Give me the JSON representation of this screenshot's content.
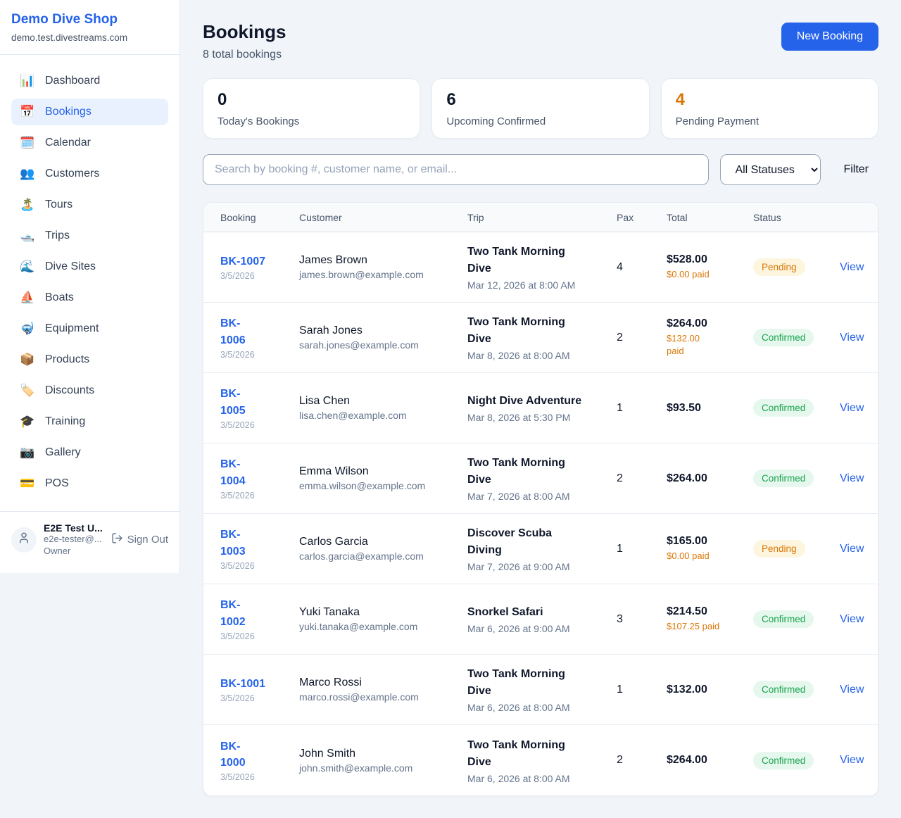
{
  "sidebar": {
    "shop_name": "Demo Dive Shop",
    "shop_domain": "demo.test.divestreams.com",
    "items": [
      {
        "label": "Dashboard",
        "icon": "bar-chart-icon",
        "glyph": "📊",
        "active": false
      },
      {
        "label": "Bookings",
        "icon": "calendar-icon",
        "glyph": "📅",
        "active": true
      },
      {
        "label": "Calendar",
        "icon": "spiral-calendar-icon",
        "glyph": "🗓️",
        "active": false
      },
      {
        "label": "Customers",
        "icon": "people-icon",
        "glyph": "👥",
        "active": false
      },
      {
        "label": "Tours",
        "icon": "island-icon",
        "glyph": "🏝️",
        "active": false
      },
      {
        "label": "Trips",
        "icon": "motorboat-icon",
        "glyph": "🛥️",
        "active": false
      },
      {
        "label": "Dive Sites",
        "icon": "wave-icon",
        "glyph": "🌊",
        "active": false
      },
      {
        "label": "Boats",
        "icon": "sailboat-icon",
        "glyph": "⛵",
        "active": false
      },
      {
        "label": "Equipment",
        "icon": "diving-mask-icon",
        "glyph": "🤿",
        "active": false
      },
      {
        "label": "Products",
        "icon": "package-icon",
        "glyph": "📦",
        "active": false
      },
      {
        "label": "Discounts",
        "icon": "tag-icon",
        "glyph": "🏷️",
        "active": false
      },
      {
        "label": "Training",
        "icon": "graduation-cap-icon",
        "glyph": "🎓",
        "active": false
      },
      {
        "label": "Gallery",
        "icon": "camera-icon",
        "glyph": "📷",
        "active": false
      },
      {
        "label": "POS",
        "icon": "credit-card-icon",
        "glyph": "💳",
        "active": false
      }
    ],
    "user": {
      "name": "E2E Test U...",
      "email": "e2e-tester@...",
      "role": "Owner",
      "sign_out_label": "Sign Out"
    }
  },
  "header": {
    "title": "Bookings",
    "subtitle": "8 total bookings",
    "new_booking_label": "New Booking"
  },
  "stats": [
    {
      "value": "0",
      "label": "Today's Bookings",
      "value_color": "#0f172a"
    },
    {
      "value": "6",
      "label": "Upcoming Confirmed",
      "value_color": "#0f172a"
    },
    {
      "value": "4",
      "label": "Pending Payment",
      "value_color": "#d97706"
    }
  ],
  "filters": {
    "search_placeholder": "Search by booking #, customer name, or email...",
    "status_filter_value": "All Statuses",
    "filter_label": "Filter"
  },
  "table": {
    "columns": [
      "Booking",
      "Customer",
      "Trip",
      "Pax",
      "Total",
      "Status"
    ],
    "view_label": "View",
    "rows": [
      {
        "id_display": "BK-1007",
        "date": "3/5/2026",
        "customer": "James Brown",
        "email": "james.brown@example.com",
        "trip": "Two Tank Morning\nDive",
        "trip_date": "Mar 12, 2026 at 8:00 AM",
        "pax": "4",
        "total": "$528.00",
        "paid": "$0.00 paid",
        "status": "Pending"
      },
      {
        "id_display": "BK-\n1006",
        "date": "3/5/2026",
        "customer": "Sarah Jones",
        "email": "sarah.jones@example.com",
        "trip": "Two Tank Morning\nDive",
        "trip_date": "Mar 8, 2026 at 8:00 AM",
        "pax": "2",
        "total": "$264.00",
        "paid": "$132.00\npaid",
        "status": "Confirmed"
      },
      {
        "id_display": "BK-\n1005",
        "date": "3/5/2026",
        "customer": "Lisa Chen",
        "email": "lisa.chen@example.com",
        "trip": "Night Dive Adventure",
        "trip_date": "Mar 8, 2026 at 5:30 PM",
        "pax": "1",
        "total": "$93.50",
        "paid": "",
        "status": "Confirmed"
      },
      {
        "id_display": "BK-\n1004",
        "date": "3/5/2026",
        "customer": "Emma Wilson",
        "email": "emma.wilson@example.com",
        "trip": "Two Tank Morning\nDive",
        "trip_date": "Mar 7, 2026 at 8:00 AM",
        "pax": "2",
        "total": "$264.00",
        "paid": "",
        "status": "Confirmed"
      },
      {
        "id_display": "BK-\n1003",
        "date": "3/5/2026",
        "customer": "Carlos Garcia",
        "email": "carlos.garcia@example.com",
        "trip": "Discover Scuba\nDiving",
        "trip_date": "Mar 7, 2026 at 9:00 AM",
        "pax": "1",
        "total": "$165.00",
        "paid": "$0.00 paid",
        "status": "Pending"
      },
      {
        "id_display": "BK-\n1002",
        "date": "3/5/2026",
        "customer": "Yuki Tanaka",
        "email": "yuki.tanaka@example.com",
        "trip": "Snorkel Safari",
        "trip_date": "Mar 6, 2026 at 9:00 AM",
        "pax": "3",
        "total": "$214.50",
        "paid": "$107.25 paid",
        "status": "Confirmed"
      },
      {
        "id_display": "BK-1001",
        "date": "3/5/2026",
        "customer": "Marco Rossi",
        "email": "marco.rossi@example.com",
        "trip": "Two Tank Morning\nDive",
        "trip_date": "Mar 6, 2026 at 8:00 AM",
        "pax": "1",
        "total": "$132.00",
        "paid": "",
        "status": "Confirmed"
      },
      {
        "id_display": "BK-\n1000",
        "date": "3/5/2026",
        "customer": "John Smith",
        "email": "john.smith@example.com",
        "trip": "Two Tank Morning\nDive",
        "trip_date": "Mar 6, 2026 at 8:00 AM",
        "pax": "2",
        "total": "$264.00",
        "paid": "",
        "status": "Confirmed"
      }
    ]
  },
  "colors": {
    "accent_blue": "#2563eb",
    "pending_text": "#d97706",
    "pending_bg": "#fdf5de",
    "confirmed_text": "#16a34a",
    "confirmed_bg": "#e6f8ee",
    "page_bg": "#f1f5f9"
  }
}
